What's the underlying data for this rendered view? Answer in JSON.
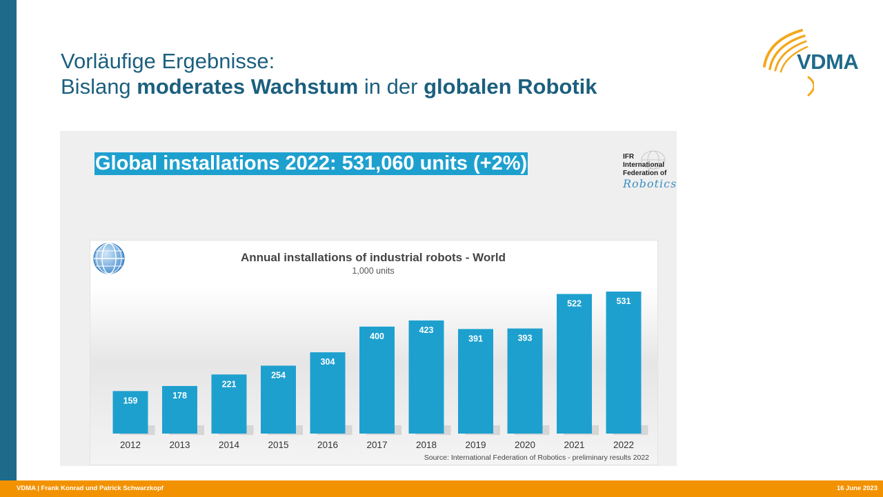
{
  "slide": {
    "title_line1": "Vorläufige Ergebnisse:",
    "title_line2_parts": [
      "Bislang ",
      "moderates Wachstum",
      " in der ",
      "globalen Robotik"
    ],
    "logo_text": "VDMA",
    "headline": "Global installations 2022: 531,060 units (+2%)",
    "ifr_logo": {
      "line1": "IFR",
      "line2": "International",
      "line3": "Federation of",
      "line4": "Robotics"
    },
    "footer_left": "VDMA | Frank Konrad und Patrick Schwarzkopf",
    "footer_right": "16 June 2023"
  },
  "colors": {
    "sidebar": "#1e6a8a",
    "title": "#1b5f7e",
    "bar": "#1ea0cf",
    "footer": "#f39200",
    "logo_swoosh": "#f3a81b"
  },
  "chart_data": {
    "type": "bar",
    "title": "Annual installations of industrial robots - World",
    "subtitle": "1,000 units",
    "categories": [
      "2012",
      "2013",
      "2014",
      "2015",
      "2016",
      "2017",
      "2018",
      "2019",
      "2020",
      "2021",
      "2022"
    ],
    "values": [
      159,
      178,
      221,
      254,
      304,
      400,
      423,
      391,
      393,
      522,
      531
    ],
    "ylim": [
      0,
      531
    ],
    "grid": false,
    "source": "Source: International Federation of Robotics - preliminary results 2022"
  }
}
